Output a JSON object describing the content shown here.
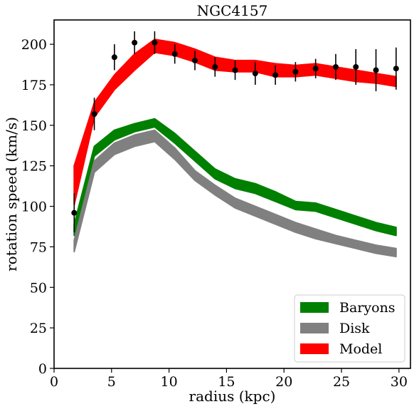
{
  "chart_data": {
    "type": "line",
    "title": "NGC4157",
    "xlabel": "radius (kpc)",
    "ylabel": "rotation speed (km/s)",
    "xlim": [
      0,
      31
    ],
    "ylim": [
      0,
      215
    ],
    "xticks": [
      "0",
      "5",
      "10",
      "15",
      "20",
      "25",
      "30"
    ],
    "yticks": [
      "0",
      "25",
      "50",
      "75",
      "100",
      "125",
      "150",
      "175",
      "200"
    ],
    "grid": false,
    "legend_position": "lower-right",
    "x": [
      1.75,
      3.5,
      5.25,
      7.0,
      8.75,
      10.5,
      12.25,
      14.0,
      15.75,
      17.5,
      19.25,
      21.0,
      22.75,
      24.5,
      26.25,
      28.0,
      29.75
    ],
    "series": [
      {
        "name": "Baryons",
        "color": "#008000",
        "kind": "band",
        "lower": [
          82,
          131,
          141,
          146,
          149,
          139,
          128,
          117,
          111,
          108,
          103,
          98,
          97,
          93,
          89,
          85,
          82
        ],
        "upper": [
          89,
          137,
          147,
          151,
          154,
          145,
          134,
          123,
          117,
          114,
          109,
          103,
          102,
          98,
          94,
          90,
          87
        ]
      },
      {
        "name": "Disk",
        "color": "#808080",
        "kind": "band",
        "lower": [
          72,
          121,
          132,
          137,
          140,
          129,
          116,
          107,
          99,
          94,
          89,
          84,
          80,
          77,
          74,
          71,
          69
        ],
        "upper": [
          79,
          128,
          139,
          144,
          147,
          136,
          122,
          113,
          105,
          100,
          95,
          90,
          86,
          82,
          79,
          76,
          74
        ]
      },
      {
        "name": "Model",
        "color": "#ff0000",
        "kind": "band",
        "lower": [
          101,
          155,
          172,
          184,
          195,
          193,
          189,
          184,
          183,
          183,
          180,
          180,
          181,
          179,
          177,
          176,
          174
        ],
        "upper": [
          125,
          164,
          181,
          194,
          203,
          201,
          197,
          192,
          190,
          190,
          188,
          187,
          188,
          186,
          184,
          182,
          180
        ]
      },
      {
        "name": "data",
        "color": "#000000",
        "kind": "errorbar",
        "y": [
          96,
          157,
          192,
          201,
          201,
          194,
          190,
          186,
          184,
          182,
          181,
          183,
          185,
          186,
          186,
          184,
          185
        ],
        "err": [
          12,
          10,
          8,
          7,
          7,
          6,
          6,
          6,
          6,
          7,
          6,
          6,
          6,
          8,
          11,
          13,
          13
        ]
      }
    ]
  }
}
